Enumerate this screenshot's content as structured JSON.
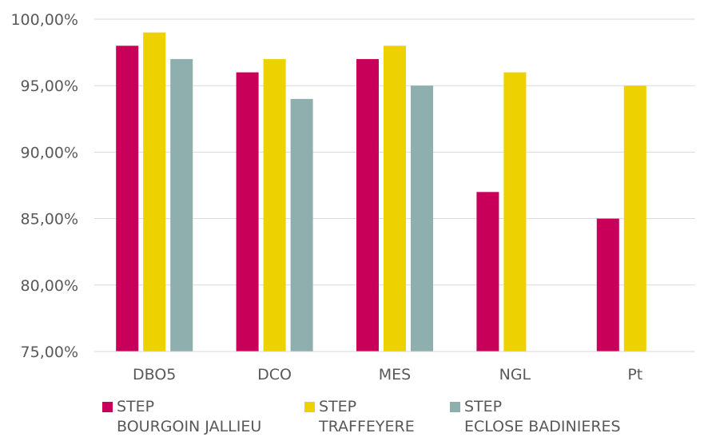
{
  "chart_data": {
    "type": "bar",
    "categories": [
      "DBO5",
      "DCO",
      "MES",
      "NGL",
      "Pt"
    ],
    "series": [
      {
        "name": "STEP\nBOURGOIN JALLIEU",
        "color": "#C8005A",
        "values": [
          98,
          96,
          97,
          87,
          85
        ]
      },
      {
        "name": "STEP\nTRAFFEYERE",
        "color": "#EDD100",
        "values": [
          99,
          97,
          98,
          96,
          95
        ]
      },
      {
        "name": "STEP\nECLOSE BADINIERES",
        "color": "#8FAEAE",
        "values": [
          97,
          94,
          95,
          null,
          null
        ]
      }
    ],
    "ylim": [
      75,
      100
    ],
    "yticks": [
      75,
      80,
      85,
      90,
      95,
      100
    ],
    "ytick_labels": [
      "75,00%",
      "80,00%",
      "85,00%",
      "90,00%",
      "95,00%",
      "100,00%"
    ],
    "title": "",
    "xlabel": "",
    "ylabel": "",
    "grid": true,
    "legend_position": "bottom"
  }
}
